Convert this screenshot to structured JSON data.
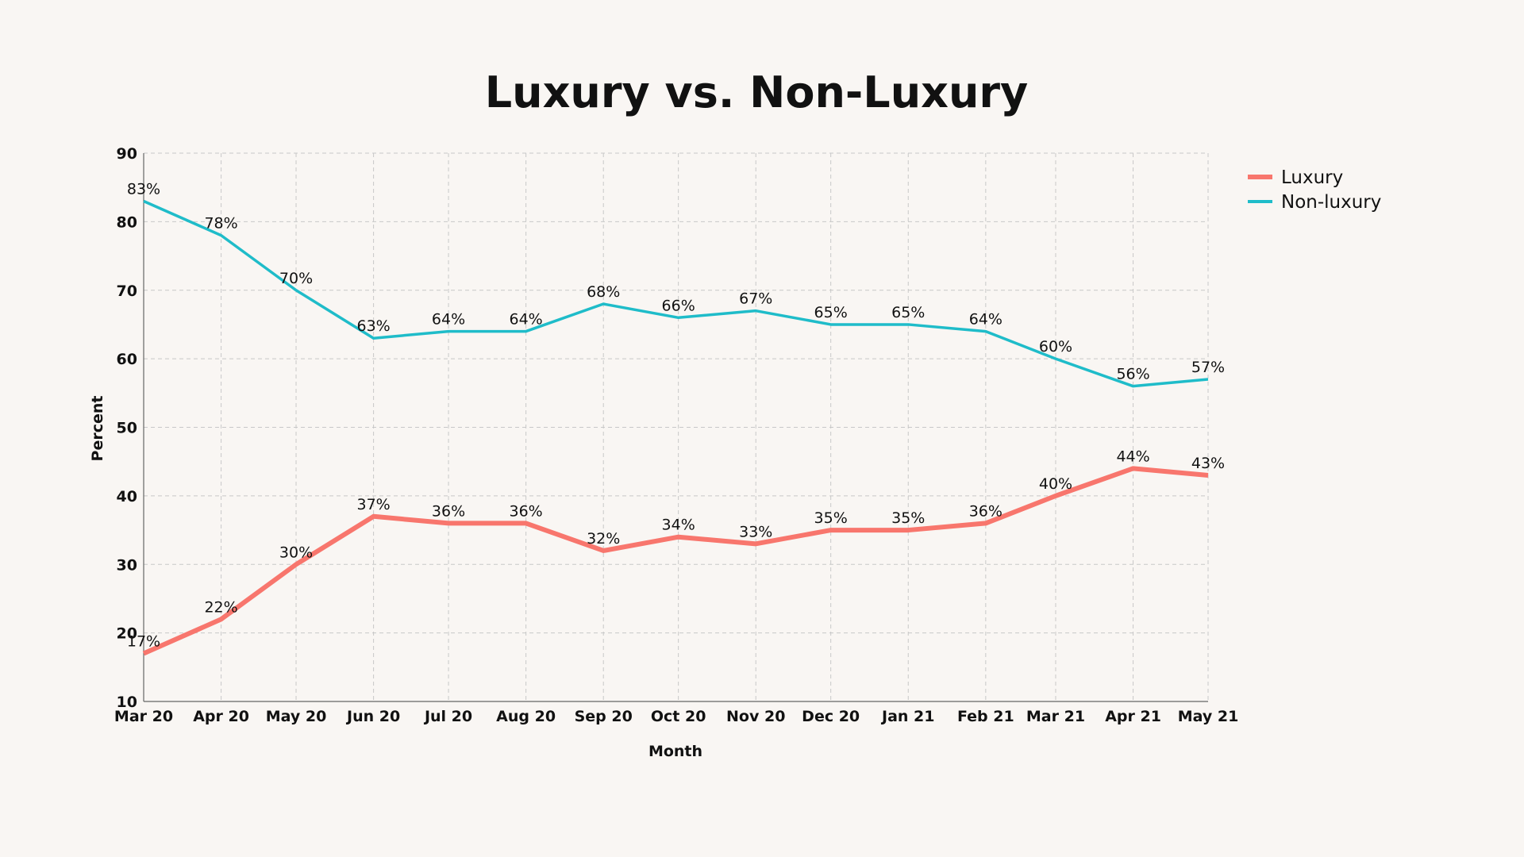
{
  "chart_data": {
    "type": "line",
    "title": "Luxury vs. Non-Luxury",
    "xlabel": "Month",
    "ylabel": "Percent",
    "ylim": [
      10,
      90
    ],
    "yticks": [
      10,
      20,
      30,
      40,
      50,
      60,
      70,
      80,
      90
    ],
    "grid": true,
    "legend_position": "top-right",
    "x": [
      "2020-03-01",
      "2020-04-01",
      "2020-05-01",
      "2020-06-01",
      "2020-07-01",
      "2020-08-01",
      "2020-09-01",
      "2020-10-01",
      "2020-11-01",
      "2020-12-01",
      "2021-01-01",
      "2021-02-01",
      "2021-03-01",
      "2021-04-01",
      "2021-05-01"
    ],
    "x_tick_labels": [
      "Mar 20",
      "Apr 20",
      "May 20",
      "Jun 20",
      "Jul 20",
      "Aug 20",
      "Sep 20",
      "Oct 20",
      "Nov 20",
      "Dec 20",
      "Jan 21",
      "Feb 21",
      "Mar 21",
      "Apr 21",
      "May 21"
    ],
    "series": [
      {
        "name": "Luxury",
        "color": "#f8766d",
        "values": [
          17,
          22,
          30,
          37,
          36,
          36,
          32,
          34,
          33,
          35,
          35,
          36,
          40,
          44,
          43
        ],
        "labels": [
          "17%",
          "22%",
          "30%",
          "37%",
          "36%",
          "36%",
          "32%",
          "34%",
          "33%",
          "35%",
          "35%",
          "36%",
          "40%",
          "44%",
          "43%"
        ]
      },
      {
        "name": "Non-luxury",
        "color": "#1fbcc9",
        "values": [
          83,
          78,
          70,
          63,
          64,
          64,
          68,
          66,
          67,
          65,
          65,
          64,
          60,
          56,
          57
        ],
        "labels": [
          "83%",
          "78%",
          "70%",
          "63%",
          "64%",
          "64%",
          "68%",
          "66%",
          "67%",
          "65%",
          "65%",
          "64%",
          "60%",
          "56%",
          "57%"
        ]
      }
    ]
  }
}
